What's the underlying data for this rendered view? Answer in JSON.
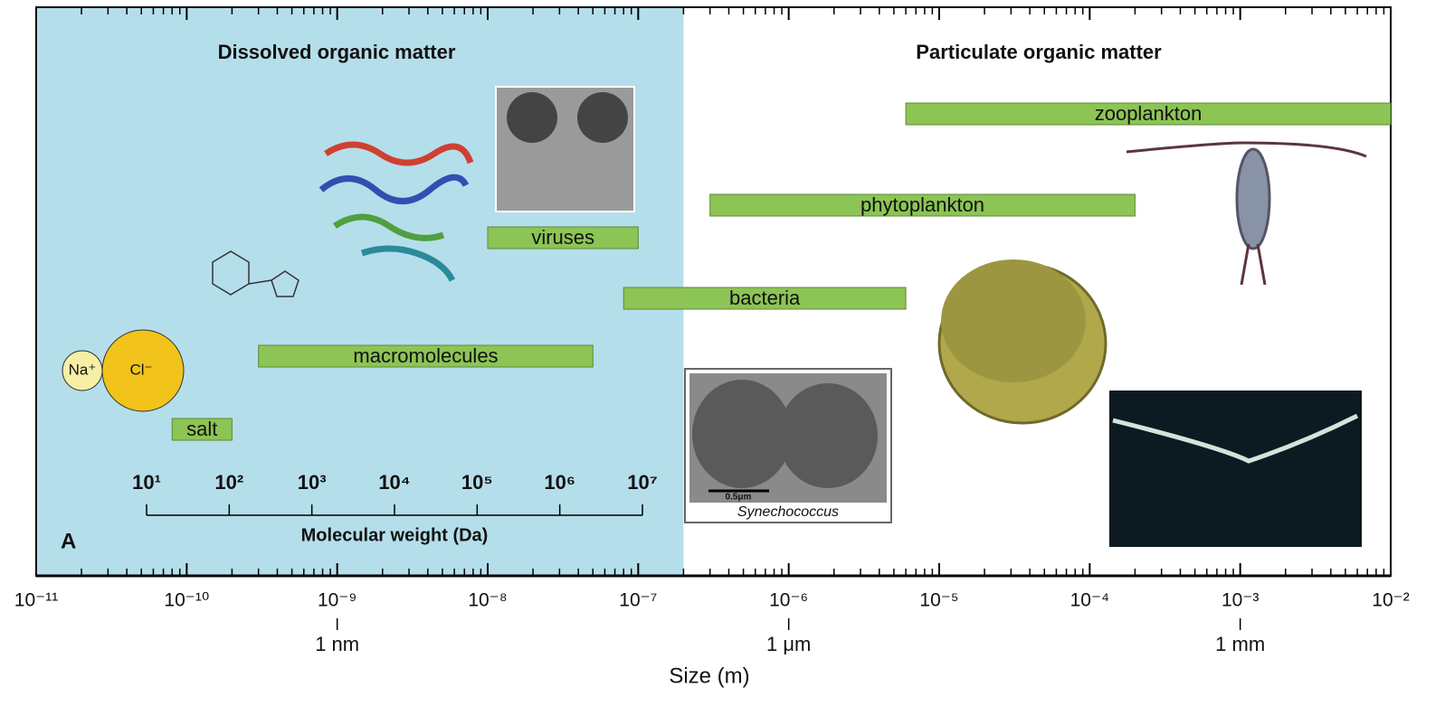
{
  "chart_data": {
    "type": "range-bar",
    "x_label": "Size (m)",
    "x_log_scale": true,
    "xlim": [
      1e-11,
      0.01
    ],
    "xticks": [
      {
        "value": 1e-11,
        "label": "10⁻¹¹"
      },
      {
        "value": 1e-10,
        "label": "10⁻¹⁰"
      },
      {
        "value": 1e-09,
        "label": "10⁻⁹"
      },
      {
        "value": 1e-08,
        "label": "10⁻⁸"
      },
      {
        "value": 1e-07,
        "label": "10⁻⁷"
      },
      {
        "value": 1e-06,
        "label": "10⁻⁶"
      },
      {
        "value": 1e-05,
        "label": "10⁻⁵"
      },
      {
        "value": 0.0001,
        "label": "10⁻⁴"
      },
      {
        "value": 0.001,
        "label": "10⁻³"
      },
      {
        "value": 0.01,
        "label": "10⁻²"
      }
    ],
    "minor_ticks": true,
    "unit_marks": [
      {
        "value": 1e-09,
        "label": "1 nm"
      },
      {
        "value": 1e-06,
        "label": "1 μm"
      },
      {
        "value": 0.001,
        "label": "1 mm"
      }
    ],
    "shaded_until": 2e-07,
    "shade_color": "#b5deeb",
    "color": "#8cc455",
    "categories": [
      "zooplankton",
      "phytoplankton",
      "viruses",
      "bacteria",
      "macromolecules",
      "salt"
    ],
    "values": [
      [
        6e-06,
        0.01
      ],
      [
        3e-07,
        0.0002
      ],
      [
        1e-08,
        1e-07
      ],
      [
        8e-08,
        6e-06
      ],
      [
        3e-10,
        5e-08
      ],
      [
        8e-11,
        2e-10
      ]
    ],
    "region_titles": [
      "Dissolved organic matter",
      "Particulate organic matter"
    ],
    "panel_label": "A",
    "mw_axis": {
      "title": "Molecular weight (Da)",
      "ticks": [
        {
          "value": 10,
          "label": "10¹"
        },
        {
          "value": 100,
          "label": "10²"
        },
        {
          "value": 1000,
          "label": "10³"
        },
        {
          "value": 10000,
          "label": "10⁴"
        },
        {
          "value": 100000,
          "label": "10⁵"
        },
        {
          "value": 1000000,
          "label": "10⁶"
        },
        {
          "value": 10000000,
          "label": "10⁷"
        }
      ]
    },
    "image_labels": {
      "sodium": "Na⁺",
      "chloride": "Cl⁻",
      "scale_bar": "0.5μm",
      "caption": "Synechococcus"
    }
  }
}
